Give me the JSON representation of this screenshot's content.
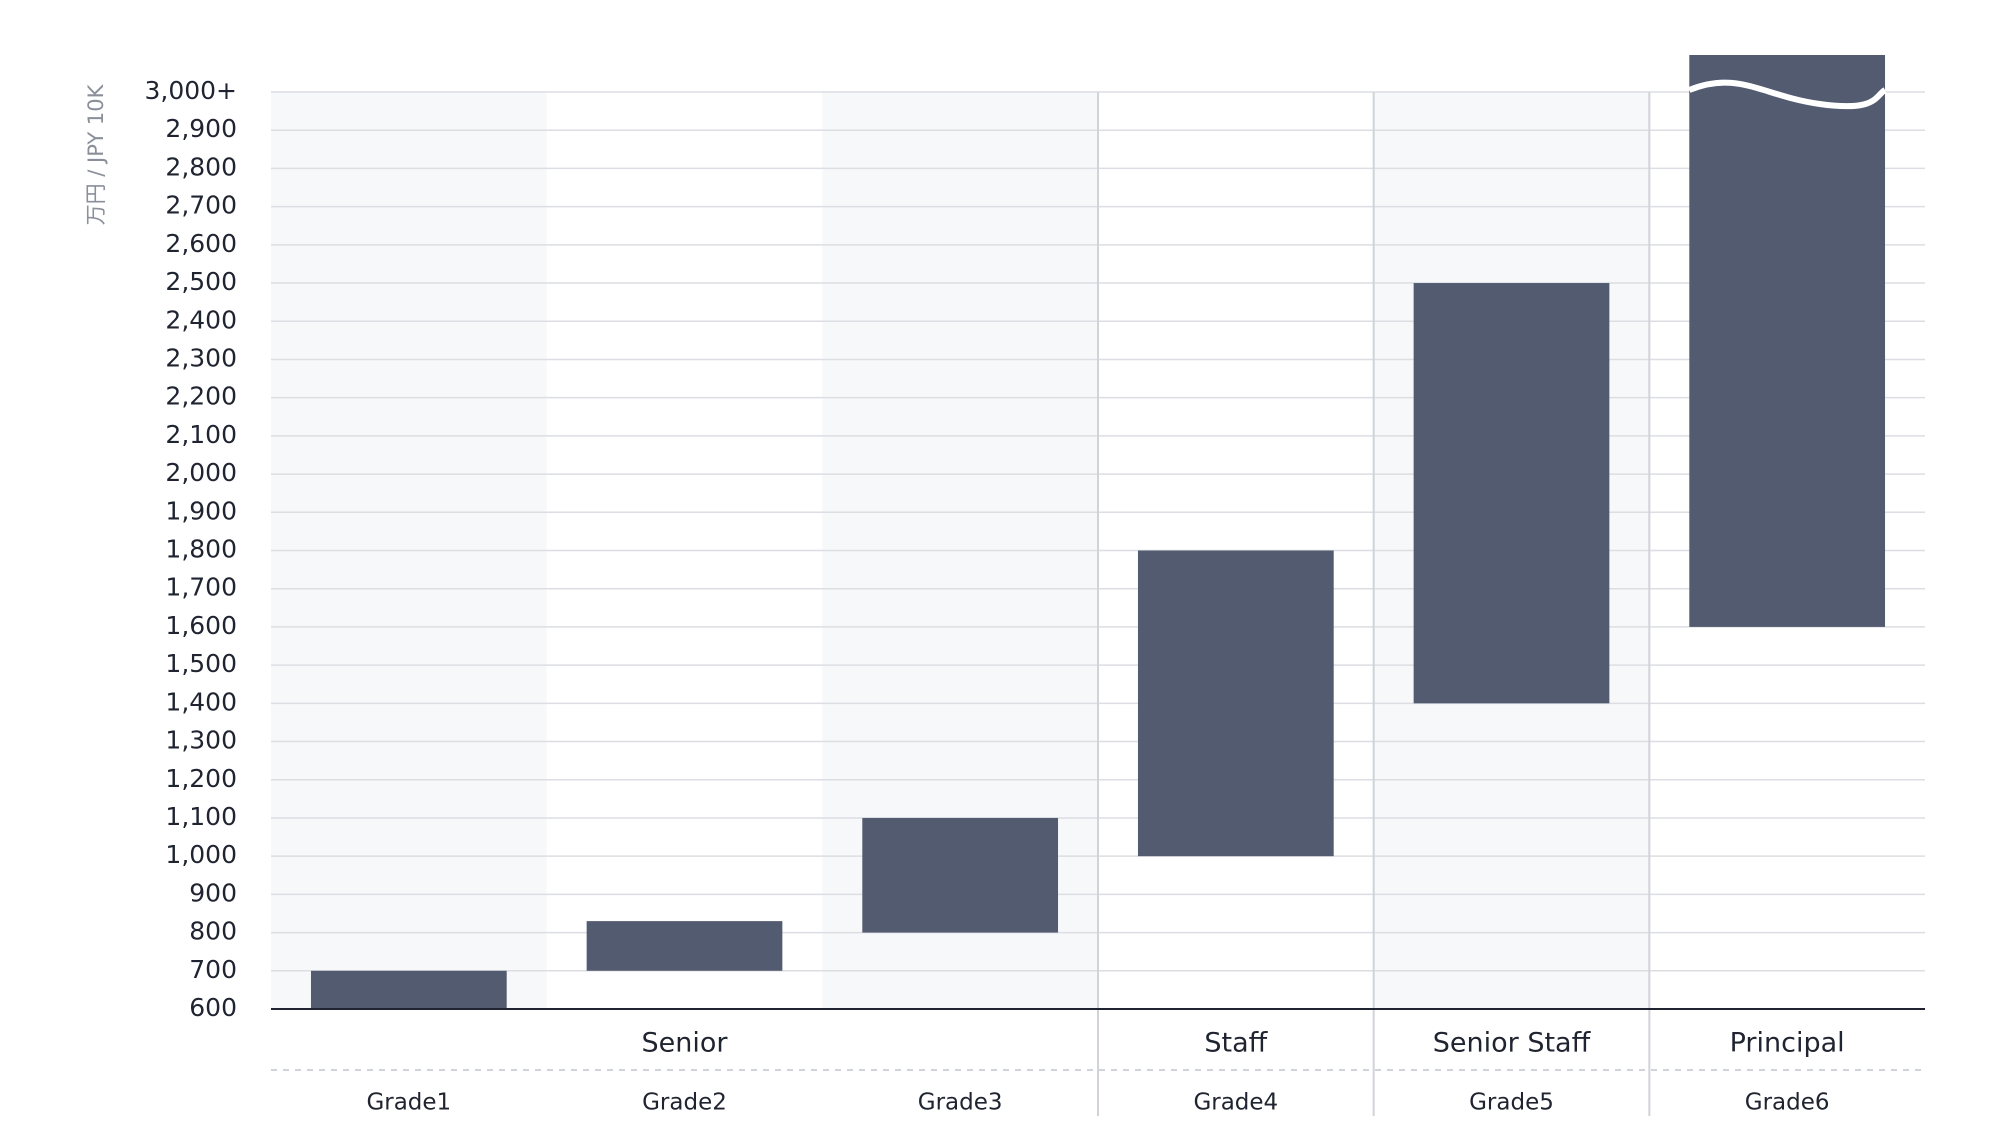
{
  "chart_data": {
    "type": "range-bar",
    "y_label": "万円 / JPY 10K",
    "categories": [
      "Grade1",
      "Grade2",
      "Grade3",
      "Grade4",
      "Grade5",
      "Grade6"
    ],
    "groups": [
      "Senior",
      "Senior",
      "Senior",
      "Staff",
      "Senior Staff",
      "Principal"
    ],
    "low": [
      600,
      700,
      800,
      1000,
      1400,
      1600
    ],
    "high": [
      700,
      830,
      1100,
      1800,
      2500,
      3000
    ],
    "color": "#535b70",
    "ylim": [
      600,
      3000
    ],
    "yticks": [
      600,
      700,
      800,
      900,
      {
        "value": 1000,
        "label": "1,000"
      },
      {
        "value": 1100,
        "label": "1,100"
      },
      {
        "value": 1200,
        "label": "1,200"
      },
      {
        "value": 1300,
        "label": "1,300"
      },
      {
        "value": 1400,
        "label": "1,400"
      },
      {
        "value": 1500,
        "label": "1,500"
      },
      {
        "value": 1600,
        "label": "1,600"
      },
      {
        "value": 1700,
        "label": "1,700"
      },
      {
        "value": 1800,
        "label": "1,800"
      },
      {
        "value": 1900,
        "label": "1,900"
      },
      {
        "value": 2000,
        "label": "2,000"
      },
      {
        "value": 2100,
        "label": "2,100"
      },
      {
        "value": 2200,
        "label": "2,200"
      },
      {
        "value": 2300,
        "label": "2,300"
      },
      {
        "value": 2400,
        "label": "2,400"
      },
      {
        "value": 2500,
        "label": "2,500"
      },
      {
        "value": 2600,
        "label": "2,600"
      },
      {
        "value": 2700,
        "label": "2,700"
      },
      {
        "value": 2800,
        "label": "2,800"
      },
      {
        "value": 2900,
        "label": "2,900"
      },
      {
        "value": 3000,
        "label": "3,000+"
      }
    ],
    "grid": true
  }
}
